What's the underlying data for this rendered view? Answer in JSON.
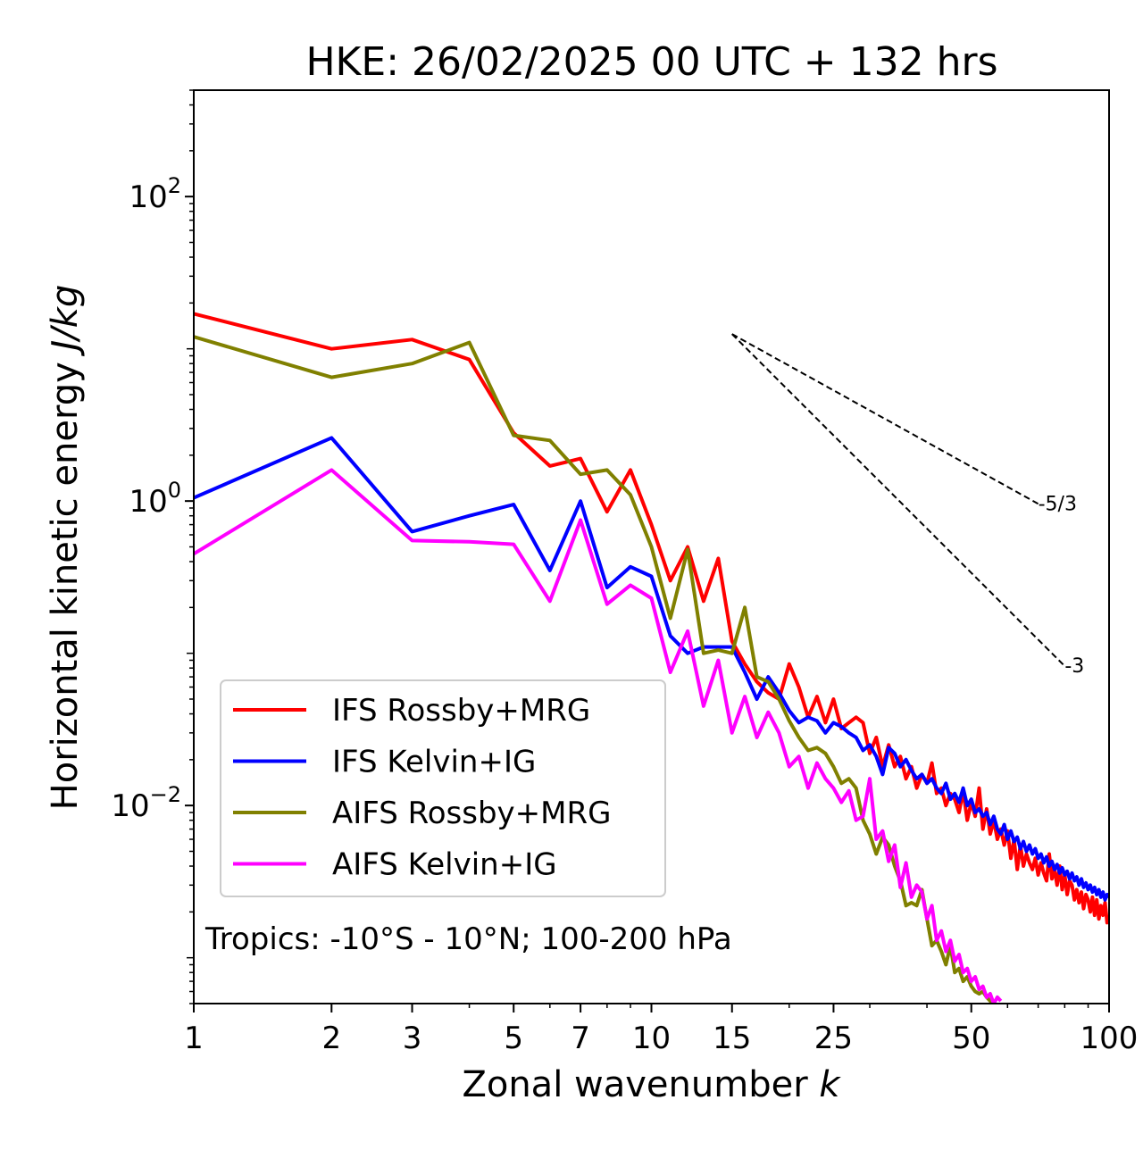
{
  "chart_data": {
    "type": "line",
    "title": "HKE: 26/02/2025 00 UTC + 132 hrs",
    "xlabel": "Zonal wavenumber",
    "xlabel_var": "k",
    "ylabel": "Horizontal kinetic energy",
    "ylabel_unit": "J/kg",
    "xscale": "log",
    "yscale": "log",
    "xlim": [
      1,
      100
    ],
    "ylim": [
      0.0005,
      500
    ],
    "x_ticks": [
      {
        "value": 1,
        "label": "1"
      },
      {
        "value": 2,
        "label": "2"
      },
      {
        "value": 3,
        "label": "3"
      },
      {
        "value": 5,
        "label": "5"
      },
      {
        "value": 7,
        "label": "7"
      },
      {
        "value": 10,
        "label": "10"
      },
      {
        "value": 15,
        "label": "15"
      },
      {
        "value": 25,
        "label": "25"
      },
      {
        "value": 50,
        "label": "50"
      },
      {
        "value": 100,
        "label": "100"
      }
    ],
    "y_ticks": [
      {
        "value": 100,
        "base": "10",
        "exp": "2"
      },
      {
        "value": 1,
        "base": "10",
        "exp": "0"
      },
      {
        "value": 0.01,
        "base": "10",
        "exp": "−2"
      }
    ],
    "annotation": "Tropics: -10°S - 10°N; 100-200 hPa",
    "reference_lines": [
      {
        "label": "-5/3",
        "slope": -1.6667,
        "x0": 15,
        "y0": 12.5,
        "x1": 70,
        "color": "#000000"
      },
      {
        "label": "-3",
        "slope": -3,
        "x0": 15,
        "y0": 12.5,
        "x1": 80,
        "color": "#000000"
      }
    ],
    "legend": {
      "position": "lower-left"
    },
    "series": [
      {
        "name": "IFS Rossby+MRG",
        "color": "#ff0000",
        "x": [
          1,
          2,
          3,
          4,
          5,
          6,
          7,
          8,
          9,
          10,
          11,
          12,
          13,
          14,
          15,
          16,
          17,
          18,
          19,
          20,
          21,
          22,
          23,
          24,
          25,
          26,
          27,
          28,
          29,
          30,
          31,
          32,
          33,
          34,
          35,
          36,
          37,
          38,
          39,
          40,
          41,
          42,
          43,
          44,
          45,
          46,
          47,
          48,
          49,
          50,
          51,
          52,
          53,
          54,
          55,
          56,
          57,
          58,
          59,
          60,
          61,
          62,
          63,
          64,
          65,
          66,
          67,
          68,
          69,
          70,
          71,
          72,
          73,
          74,
          75,
          76,
          77,
          78,
          79,
          80,
          81,
          82,
          83,
          84,
          85,
          86,
          87,
          88,
          89,
          90,
          91,
          92,
          93,
          94,
          95,
          96,
          97,
          98,
          99,
          100
        ],
        "y": [
          17,
          10,
          11.5,
          8.5,
          2.8,
          1.7,
          1.9,
          0.85,
          1.6,
          0.7,
          0.3,
          0.5,
          0.22,
          0.42,
          0.12,
          0.085,
          0.065,
          0.055,
          0.05,
          0.085,
          0.06,
          0.038,
          0.052,
          0.035,
          0.05,
          0.032,
          0.035,
          0.038,
          0.035,
          0.022,
          0.028,
          0.018,
          0.025,
          0.018,
          0.021,
          0.015,
          0.018,
          0.013,
          0.016,
          0.014,
          0.019,
          0.012,
          0.013,
          0.01,
          0.012,
          0.011,
          0.009,
          0.0125,
          0.008,
          0.0105,
          0.0085,
          0.013,
          0.007,
          0.0095,
          0.0065,
          0.008,
          0.006,
          0.007,
          0.0055,
          0.0068,
          0.0045,
          0.006,
          0.0038,
          0.0055,
          0.004,
          0.0048,
          0.0042,
          0.0038,
          0.0045,
          0.0035,
          0.0042,
          0.0036,
          0.0032,
          0.0048,
          0.0033,
          0.0038,
          0.003,
          0.004,
          0.0028,
          0.0035,
          0.0026,
          0.0032,
          0.003,
          0.0024,
          0.0028,
          0.0023,
          0.0027,
          0.0021,
          0.0026,
          0.0024,
          0.002,
          0.0025,
          0.0019,
          0.0024,
          0.0018,
          0.0022,
          0.0019,
          0.0023,
          0.0017,
          0.0019
        ]
      },
      {
        "name": "IFS Kelvin+IG",
        "color": "#0000ff",
        "x": [
          1,
          2,
          3,
          4,
          5,
          6,
          7,
          8,
          9,
          10,
          11,
          12,
          13,
          14,
          15,
          16,
          17,
          18,
          19,
          20,
          21,
          22,
          23,
          24,
          25,
          26,
          27,
          28,
          29,
          30,
          31,
          32,
          33,
          34,
          35,
          36,
          37,
          38,
          39,
          40,
          41,
          42,
          43,
          44,
          45,
          46,
          47,
          48,
          49,
          50,
          51,
          52,
          53,
          54,
          55,
          56,
          57,
          58,
          59,
          60,
          61,
          62,
          63,
          64,
          65,
          66,
          67,
          68,
          69,
          70,
          71,
          72,
          73,
          74,
          75,
          76,
          77,
          78,
          79,
          80,
          81,
          82,
          83,
          84,
          85,
          86,
          87,
          88,
          89,
          90,
          91,
          92,
          93,
          94,
          95,
          96,
          97,
          98,
          99,
          100
        ],
        "y": [
          1.05,
          2.6,
          0.63,
          0.8,
          0.95,
          0.35,
          1,
          0.27,
          0.37,
          0.32,
          0.13,
          0.1,
          0.11,
          0.11,
          0.11,
          0.075,
          0.05,
          0.07,
          0.055,
          0.042,
          0.035,
          0.038,
          0.036,
          0.03,
          0.035,
          0.033,
          0.03,
          0.028,
          0.023,
          0.025,
          0.021,
          0.016,
          0.024,
          0.022,
          0.018,
          0.02,
          0.017,
          0.015,
          0.016,
          0.014,
          0.015,
          0.013,
          0.012,
          0.014,
          0.011,
          0.012,
          0.0105,
          0.013,
          0.01,
          0.011,
          0.009,
          0.0095,
          0.0085,
          0.009,
          0.0075,
          0.0085,
          0.007,
          0.0065,
          0.0075,
          0.006,
          0.0068,
          0.0058,
          0.0062,
          0.0052,
          0.0058,
          0.005,
          0.0055,
          0.0048,
          0.0052,
          0.0045,
          0.0048,
          0.0042,
          0.0046,
          0.004,
          0.0043,
          0.0038,
          0.0041,
          0.0036,
          0.0039,
          0.0035,
          0.0037,
          0.0033,
          0.0036,
          0.0032,
          0.0034,
          0.003,
          0.0033,
          0.0029,
          0.0031,
          0.0028,
          0.003,
          0.0027,
          0.0029,
          0.0026,
          0.0028,
          0.0025,
          0.0027,
          0.0024,
          0.0026,
          0.0025
        ]
      },
      {
        "name": "AIFS Rossby+MRG",
        "color": "#808000",
        "x": [
          1,
          2,
          3,
          4,
          5,
          6,
          7,
          8,
          9,
          10,
          11,
          12,
          13,
          14,
          15,
          16,
          17,
          18,
          19,
          20,
          21,
          22,
          23,
          24,
          25,
          26,
          27,
          28,
          29,
          30,
          31,
          32,
          33,
          34,
          35,
          36,
          37,
          38,
          39,
          40,
          41,
          42,
          43,
          44,
          45,
          46,
          47,
          48,
          49,
          50,
          51,
          52,
          53,
          54,
          55,
          56
        ],
        "y": [
          12,
          6.5,
          8,
          11,
          2.7,
          2.5,
          1.5,
          1.6,
          1.1,
          0.5,
          0.17,
          0.48,
          0.1,
          0.105,
          0.1,
          0.2,
          0.07,
          0.065,
          0.05,
          0.036,
          0.028,
          0.023,
          0.024,
          0.022,
          0.018,
          0.014,
          0.015,
          0.013,
          0.008,
          0.0065,
          0.0048,
          0.0062,
          0.0055,
          0.004,
          0.0032,
          0.0022,
          0.0023,
          0.0022,
          0.0028,
          0.0018,
          0.0012,
          0.0013,
          0.0011,
          0.0009,
          0.0012,
          0.0008,
          0.00085,
          0.0007,
          0.00075,
          0.00065,
          0.0006,
          0.00058,
          0.0006,
          0.00055,
          0.00052,
          0.0005
        ]
      },
      {
        "name": "AIFS Kelvin+IG",
        "color": "#ff00ff",
        "x": [
          1,
          2,
          3,
          4,
          5,
          6,
          7,
          8,
          9,
          10,
          11,
          12,
          13,
          14,
          15,
          16,
          17,
          18,
          19,
          20,
          21,
          22,
          23,
          24,
          25,
          26,
          27,
          28,
          29,
          30,
          31,
          32,
          33,
          34,
          35,
          36,
          37,
          38,
          39,
          40,
          41,
          42,
          43,
          44,
          45,
          46,
          47,
          48,
          49,
          50,
          51,
          52,
          53,
          54,
          55,
          56,
          57,
          58
        ],
        "y": [
          0.45,
          1.6,
          0.55,
          0.54,
          0.52,
          0.22,
          0.75,
          0.21,
          0.28,
          0.23,
          0.075,
          0.14,
          0.045,
          0.09,
          0.03,
          0.052,
          0.028,
          0.041,
          0.03,
          0.018,
          0.021,
          0.013,
          0.019,
          0.015,
          0.013,
          0.0105,
          0.0125,
          0.008,
          0.0085,
          0.015,
          0.006,
          0.0068,
          0.0043,
          0.0055,
          0.0029,
          0.0042,
          0.0025,
          0.003,
          0.0027,
          0.0018,
          0.0022,
          0.0013,
          0.0015,
          0.0011,
          0.0013,
          0.00095,
          0.00105,
          0.0008,
          0.00085,
          0.0007,
          0.00075,
          0.00062,
          0.00065,
          0.00055,
          0.00058,
          0.0005,
          0.00055,
          0.00052
        ]
      }
    ]
  }
}
